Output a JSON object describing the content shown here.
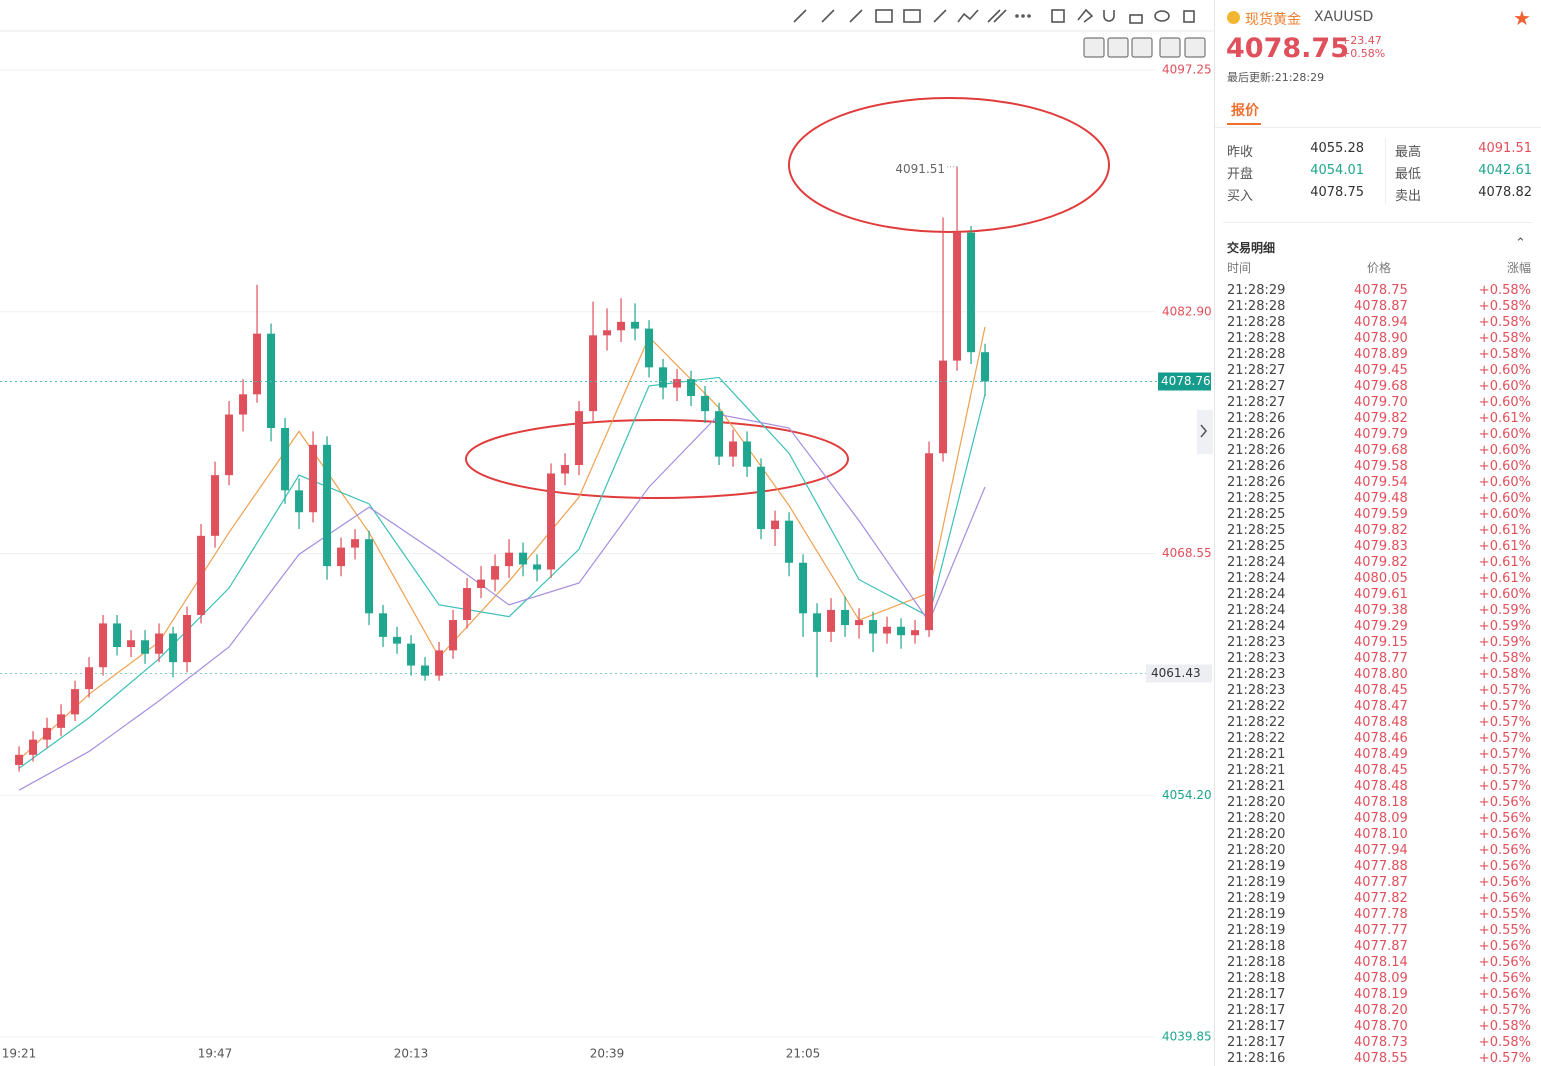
{
  "chart_data": {
    "type": "candlestick",
    "open": [
      4056.0,
      4056.6,
      4057.5,
      4058.2,
      4059.0,
      4060.5,
      4061.8,
      4064.4,
      4063.0,
      4063.4,
      4062.6,
      4063.8,
      4062.1,
      4064.9,
      4069.6,
      4073.2,
      4076.8,
      4078.0,
      4081.6,
      4076.0,
      4072.3,
      4071.0,
      4075.0,
      4067.8,
      4068.9,
      4069.4,
      4065.0,
      4063.6,
      4063.2,
      4061.9,
      4061.3,
      4062.8,
      4064.6,
      4066.5,
      4067.0,
      4067.8,
      4068.6,
      4067.9,
      4067.6,
      4073.3,
      4073.8,
      4077.0,
      4081.5,
      4081.8,
      4082.3,
      4081.9,
      4079.6,
      4078.4,
      4078.9,
      4077.9,
      4077.0,
      4074.3,
      4075.2,
      4073.7,
      4070.0,
      4070.5,
      4068.0,
      4065.0,
      4063.9,
      4065.2,
      4064.3,
      4064.6,
      4063.8,
      4064.2,
      4063.7,
      4064.0,
      4074.5,
      4080.0,
      4087.6,
      4080.5
    ],
    "high": [
      4057.1,
      4058.0,
      4058.8,
      4059.6,
      4061.0,
      4062.4,
      4064.9,
      4064.9,
      4064.0,
      4064.0,
      4064.4,
      4064.2,
      4065.4,
      4070.3,
      4074.0,
      4077.6,
      4078.9,
      4084.5,
      4082.2,
      4076.6,
      4073.0,
      4075.8,
      4075.5,
      4069.5,
      4070.0,
      4069.9,
      4065.5,
      4064.2,
      4063.7,
      4062.4,
      4063.3,
      4065.2,
      4067.1,
      4067.8,
      4068.5,
      4069.4,
      4069.2,
      4068.5,
      4073.9,
      4074.5,
      4077.6,
      4083.5,
      4083.1,
      4083.7,
      4083.4,
      4082.4,
      4080.1,
      4079.5,
      4079.4,
      4078.5,
      4077.5,
      4075.9,
      4075.8,
      4074.2,
      4071.1,
      4071.0,
      4068.5,
      4065.6,
      4065.9,
      4066.0,
      4065.3,
      4065.1,
      4064.8,
      4064.7,
      4064.6,
      4075.2,
      4088.5,
      4091.51,
      4088.0,
      4081.0
    ],
    "low": [
      4055.6,
      4056.2,
      4057.0,
      4057.7,
      4058.6,
      4060.0,
      4061.3,
      4062.5,
      4062.4,
      4062.0,
      4062.1,
      4061.2,
      4061.5,
      4064.4,
      4068.9,
      4072.6,
      4075.8,
      4077.5,
      4075.2,
      4071.5,
      4070.0,
      4070.4,
      4067.0,
      4067.2,
      4068.2,
      4064.3,
      4063.0,
      4062.6,
      4061.3,
      4061.0,
      4061.0,
      4062.3,
      4064.1,
      4065.9,
      4066.3,
      4067.1,
      4067.2,
      4066.9,
      4067.1,
      4072.6,
      4073.2,
      4076.4,
      4080.6,
      4081.1,
      4081.2,
      4079.0,
      4077.7,
      4077.6,
      4077.3,
      4076.3,
      4073.8,
      4073.7,
      4073.1,
      4069.4,
      4069.0,
      4067.2,
      4063.6,
      4061.2,
      4063.3,
      4063.6,
      4063.5,
      4062.7,
      4063.2,
      4062.9,
      4063.2,
      4063.6,
      4074.0,
      4079.4,
      4079.8,
      4077.9
    ],
    "close": [
      4056.6,
      4057.5,
      4058.2,
      4059.0,
      4060.5,
      4061.8,
      4064.4,
      4063.0,
      4063.4,
      4062.6,
      4063.8,
      4062.1,
      4064.9,
      4069.6,
      4073.2,
      4076.8,
      4078.0,
      4081.6,
      4076.0,
      4072.3,
      4071.0,
      4075.0,
      4067.8,
      4068.9,
      4069.4,
      4065.0,
      4063.6,
      4063.2,
      4061.9,
      4061.3,
      4062.8,
      4064.6,
      4066.5,
      4067.0,
      4067.8,
      4068.6,
      4067.9,
      4067.6,
      4073.3,
      4073.8,
      4077.0,
      4081.5,
      4081.8,
      4082.3,
      4081.9,
      4079.6,
      4078.4,
      4078.9,
      4077.9,
      4077.0,
      4074.3,
      4075.2,
      4073.7,
      4070.0,
      4070.5,
      4068.0,
      4065.0,
      4063.9,
      4065.2,
      4064.3,
      4064.6,
      4063.8,
      4064.2,
      4063.7,
      4064.0,
      4074.5,
      4080.0,
      4087.6,
      4080.5,
      4078.76
    ],
    "up_color": "#e0505c",
    "down_color": "#1fa68e",
    "moving_averages": [
      {
        "color": "#f0a050",
        "x": [
          0,
          5,
          10,
          15,
          20,
          25,
          30,
          35,
          40,
          45,
          50,
          55,
          60,
          65,
          69
        ],
        "values": [
          4056.3,
          4060.2,
          4063.3,
          4069.8,
          4075.8,
          4069.8,
          4062.4,
          4066.9,
          4071.9,
          4081.4,
          4077.2,
          4071.4,
          4064.6,
          4066.2,
          4082.0
        ]
      },
      {
        "color": "#3cc0b8",
        "x": [
          0,
          5,
          10,
          15,
          20,
          25,
          30,
          35,
          40,
          45,
          50,
          55,
          60,
          65,
          69
        ],
        "values": [
          4055.8,
          4058.8,
          4062.3,
          4066.5,
          4073.2,
          4071.5,
          4065.5,
          4064.8,
          4068.8,
          4078.5,
          4079.0,
          4074.5,
          4067.0,
          4064.8,
          4078.0
        ]
      },
      {
        "color": "#a58ee0",
        "x": [
          0,
          5,
          10,
          15,
          20,
          25,
          30,
          35,
          40,
          45,
          50,
          55,
          60,
          65,
          69
        ],
        "values": [
          4054.5,
          4056.8,
          4059.8,
          4063.0,
          4068.5,
          4071.3,
          4068.5,
          4065.5,
          4066.8,
          4072.5,
          4076.8,
          4076.0,
          4070.5,
          4064.5,
          4072.5
        ]
      }
    ],
    "xlim": [
      -1.36,
      81.14
    ],
    "xticks": [
      {
        "value": 0,
        "label": "19:21"
      },
      {
        "value": 14,
        "label": "19:47"
      },
      {
        "value": 28,
        "label": "20:13"
      },
      {
        "value": 42,
        "label": "20:39"
      },
      {
        "value": 56,
        "label": "21:05"
      }
    ],
    "ylim": [
      4039.85,
      4097.25
    ],
    "yticks": [
      4097.25,
      {
        "value": 4082.9,
        "label": "4082.90"
      },
      4068.55,
      {
        "value": 4054.2,
        "label": "4054.20"
      },
      4039.85
    ],
    "ytick_colors": [
      "#e0505c",
      "#e0505c",
      "#e0505c",
      "#1fa68e",
      "#1fa68e"
    ],
    "current_price": 4078.76,
    "alert_price": 4061.43,
    "high_annotation": 4091.51,
    "high_annotation_index": 67
  },
  "panel": {
    "name": "现货黄金",
    "symbol": "XAUUSD",
    "price": "4078.75",
    "change": "+23.47",
    "change_pct": "+0.58%",
    "updated": "最后更新:21:28:29",
    "tab": "报价",
    "quote": [
      [
        "昨收",
        "4055.28",
        "最高",
        "4091.51"
      ],
      [
        "开盘",
        "4054.01",
        "最低",
        "4042.61"
      ],
      [
        "买入",
        "4078.75",
        "卖出",
        "4078.82"
      ]
    ],
    "trades_title": "交易明细",
    "trades_header": [
      "时间",
      "价格",
      "涨幅"
    ],
    "trades": [
      [
        "21:28:29",
        "4078.75",
        "+0.58%"
      ],
      [
        "21:28:28",
        "4078.87",
        "+0.58%"
      ],
      [
        "21:28:28",
        "4078.94",
        "+0.58%"
      ],
      [
        "21:28:28",
        "4078.90",
        "+0.58%"
      ],
      [
        "21:28:28",
        "4078.89",
        "+0.58%"
      ],
      [
        "21:28:27",
        "4079.45",
        "+0.60%"
      ],
      [
        "21:28:27",
        "4079.68",
        "+0.60%"
      ],
      [
        "21:28:27",
        "4079.70",
        "+0.60%"
      ],
      [
        "21:28:26",
        "4079.82",
        "+0.61%"
      ],
      [
        "21:28:26",
        "4079.79",
        "+0.60%"
      ],
      [
        "21:28:26",
        "4079.68",
        "+0.60%"
      ],
      [
        "21:28:26",
        "4079.58",
        "+0.60%"
      ],
      [
        "21:28:26",
        "4079.54",
        "+0.60%"
      ],
      [
        "21:28:25",
        "4079.48",
        "+0.60%"
      ],
      [
        "21:28:25",
        "4079.59",
        "+0.60%"
      ],
      [
        "21:28:25",
        "4079.82",
        "+0.61%"
      ],
      [
        "21:28:25",
        "4079.83",
        "+0.61%"
      ],
      [
        "21:28:24",
        "4079.82",
        "+0.61%"
      ],
      [
        "21:28:24",
        "4080.05",
        "+0.61%"
      ],
      [
        "21:28:24",
        "4079.61",
        "+0.60%"
      ],
      [
        "21:28:24",
        "4079.38",
        "+0.59%"
      ],
      [
        "21:28:24",
        "4079.29",
        "+0.59%"
      ],
      [
        "21:28:23",
        "4079.15",
        "+0.59%"
      ],
      [
        "21:28:23",
        "4078.77",
        "+0.58%"
      ],
      [
        "21:28:23",
        "4078.80",
        "+0.58%"
      ],
      [
        "21:28:23",
        "4078.45",
        "+0.57%"
      ],
      [
        "21:28:22",
        "4078.47",
        "+0.57%"
      ],
      [
        "21:28:22",
        "4078.48",
        "+0.57%"
      ],
      [
        "21:28:22",
        "4078.46",
        "+0.57%"
      ],
      [
        "21:28:21",
        "4078.49",
        "+0.57%"
      ],
      [
        "21:28:21",
        "4078.45",
        "+0.57%"
      ],
      [
        "21:28:21",
        "4078.48",
        "+0.57%"
      ],
      [
        "21:28:20",
        "4078.18",
        "+0.56%"
      ],
      [
        "21:28:20",
        "4078.09",
        "+0.56%"
      ],
      [
        "21:28:20",
        "4078.10",
        "+0.56%"
      ],
      [
        "21:28:20",
        "4077.94",
        "+0.56%"
      ],
      [
        "21:28:19",
        "4077.88",
        "+0.56%"
      ],
      [
        "21:28:19",
        "4077.87",
        "+0.56%"
      ],
      [
        "21:28:19",
        "4077.82",
        "+0.56%"
      ],
      [
        "21:28:19",
        "4077.78",
        "+0.55%"
      ],
      [
        "21:28:19",
        "4077.77",
        "+0.55%"
      ],
      [
        "21:28:18",
        "4077.87",
        "+0.56%"
      ],
      [
        "21:28:18",
        "4078.14",
        "+0.56%"
      ],
      [
        "21:28:18",
        "4078.09",
        "+0.56%"
      ],
      [
        "21:28:17",
        "4078.19",
        "+0.56%"
      ],
      [
        "21:28:17",
        "4078.20",
        "+0.57%"
      ],
      [
        "21:28:17",
        "4078.70",
        "+0.58%"
      ],
      [
        "21:28:17",
        "4078.73",
        "+0.58%"
      ],
      [
        "21:28:16",
        "4078.55",
        "+0.57%"
      ]
    ]
  }
}
